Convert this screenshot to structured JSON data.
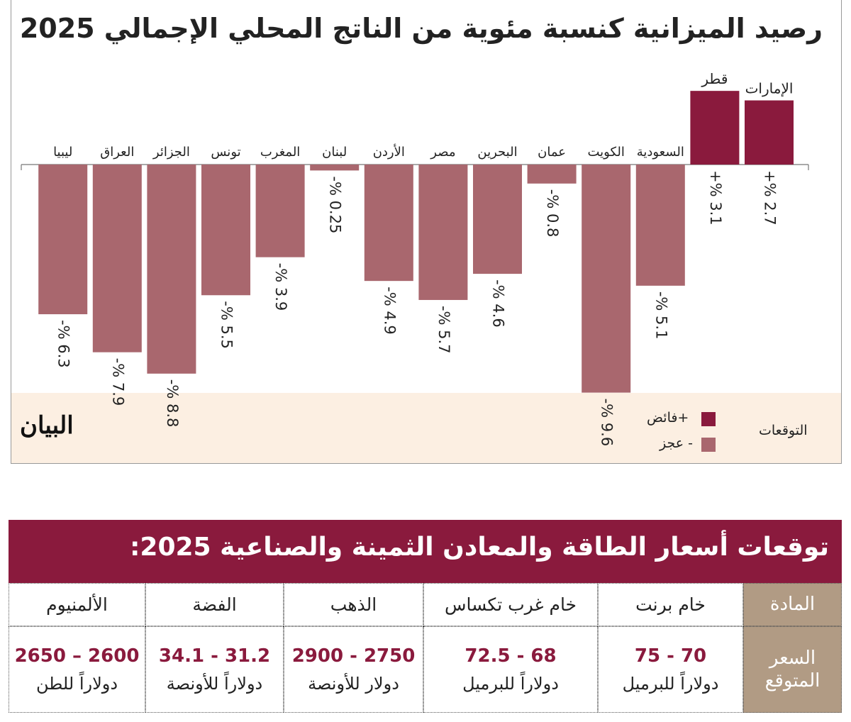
{
  "chart_data": {
    "type": "bar",
    "title": "رصيد الميزانية كنسبة مئوية من الناتج المحلي الإجمالي 2025",
    "categories": [
      "الإمارات",
      "قطر",
      "السعودية",
      "الكويت",
      "عمان",
      "البحرين",
      "مصر",
      "الأردن",
      "لبنان",
      "المغرب",
      "تونس",
      "الجزائر",
      "العراق",
      "ليبيا"
    ],
    "values": [
      2.7,
      3.1,
      -5.1,
      -9.6,
      -0.8,
      -4.6,
      -5.7,
      -4.9,
      -0.25,
      -3.9,
      -5.5,
      -8.8,
      -7.9,
      -6.3
    ],
    "value_labels": [
      "+% 2.7",
      "+% 3.1",
      "-% 5.1",
      "-% 9.6",
      "-% 0.8",
      "-% 4.6",
      "-% 5.7",
      "-% 4.9",
      "-% 0.25",
      "-% 3.9",
      "-% 5.5",
      "-% 8.8",
      "-% 7.9",
      "-% 6.3"
    ],
    "units": "% of GDP",
    "legend": {
      "title": "التوقعات",
      "items": [
        {
          "label": "+فائض",
          "color": "#8a1a3d"
        },
        {
          "label": "- عجز",
          "color": "#a9676e"
        }
      ]
    },
    "colors": {
      "surplus": "#8a1a3d",
      "deficit": "#a9676e"
    },
    "grid": false
  },
  "logo": "البيان",
  "table": {
    "title": "توقعات أسعار الطاقة والمعادن الثمينة والصناعية 2025:",
    "row_headers": [
      "المادة",
      "السعر المتوقع"
    ],
    "columns": [
      {
        "name": "خام برنت",
        "price": "75 - 70",
        "unit": "دولاراً للبرميل"
      },
      {
        "name": "خام غرب تكساس",
        "price": "72.5 - 68",
        "unit": "دولاراً للبرميل"
      },
      {
        "name": "الذهب",
        "price": "2900 - 2750",
        "unit": "دولار للأونصة"
      },
      {
        "name": "الفضة",
        "price": "34.1 - 31.2",
        "unit": "دولاراً للأونصة"
      },
      {
        "name": "الألمنيوم",
        "price": "2650 – 2600",
        "unit": "دولاراً للطن"
      }
    ]
  }
}
